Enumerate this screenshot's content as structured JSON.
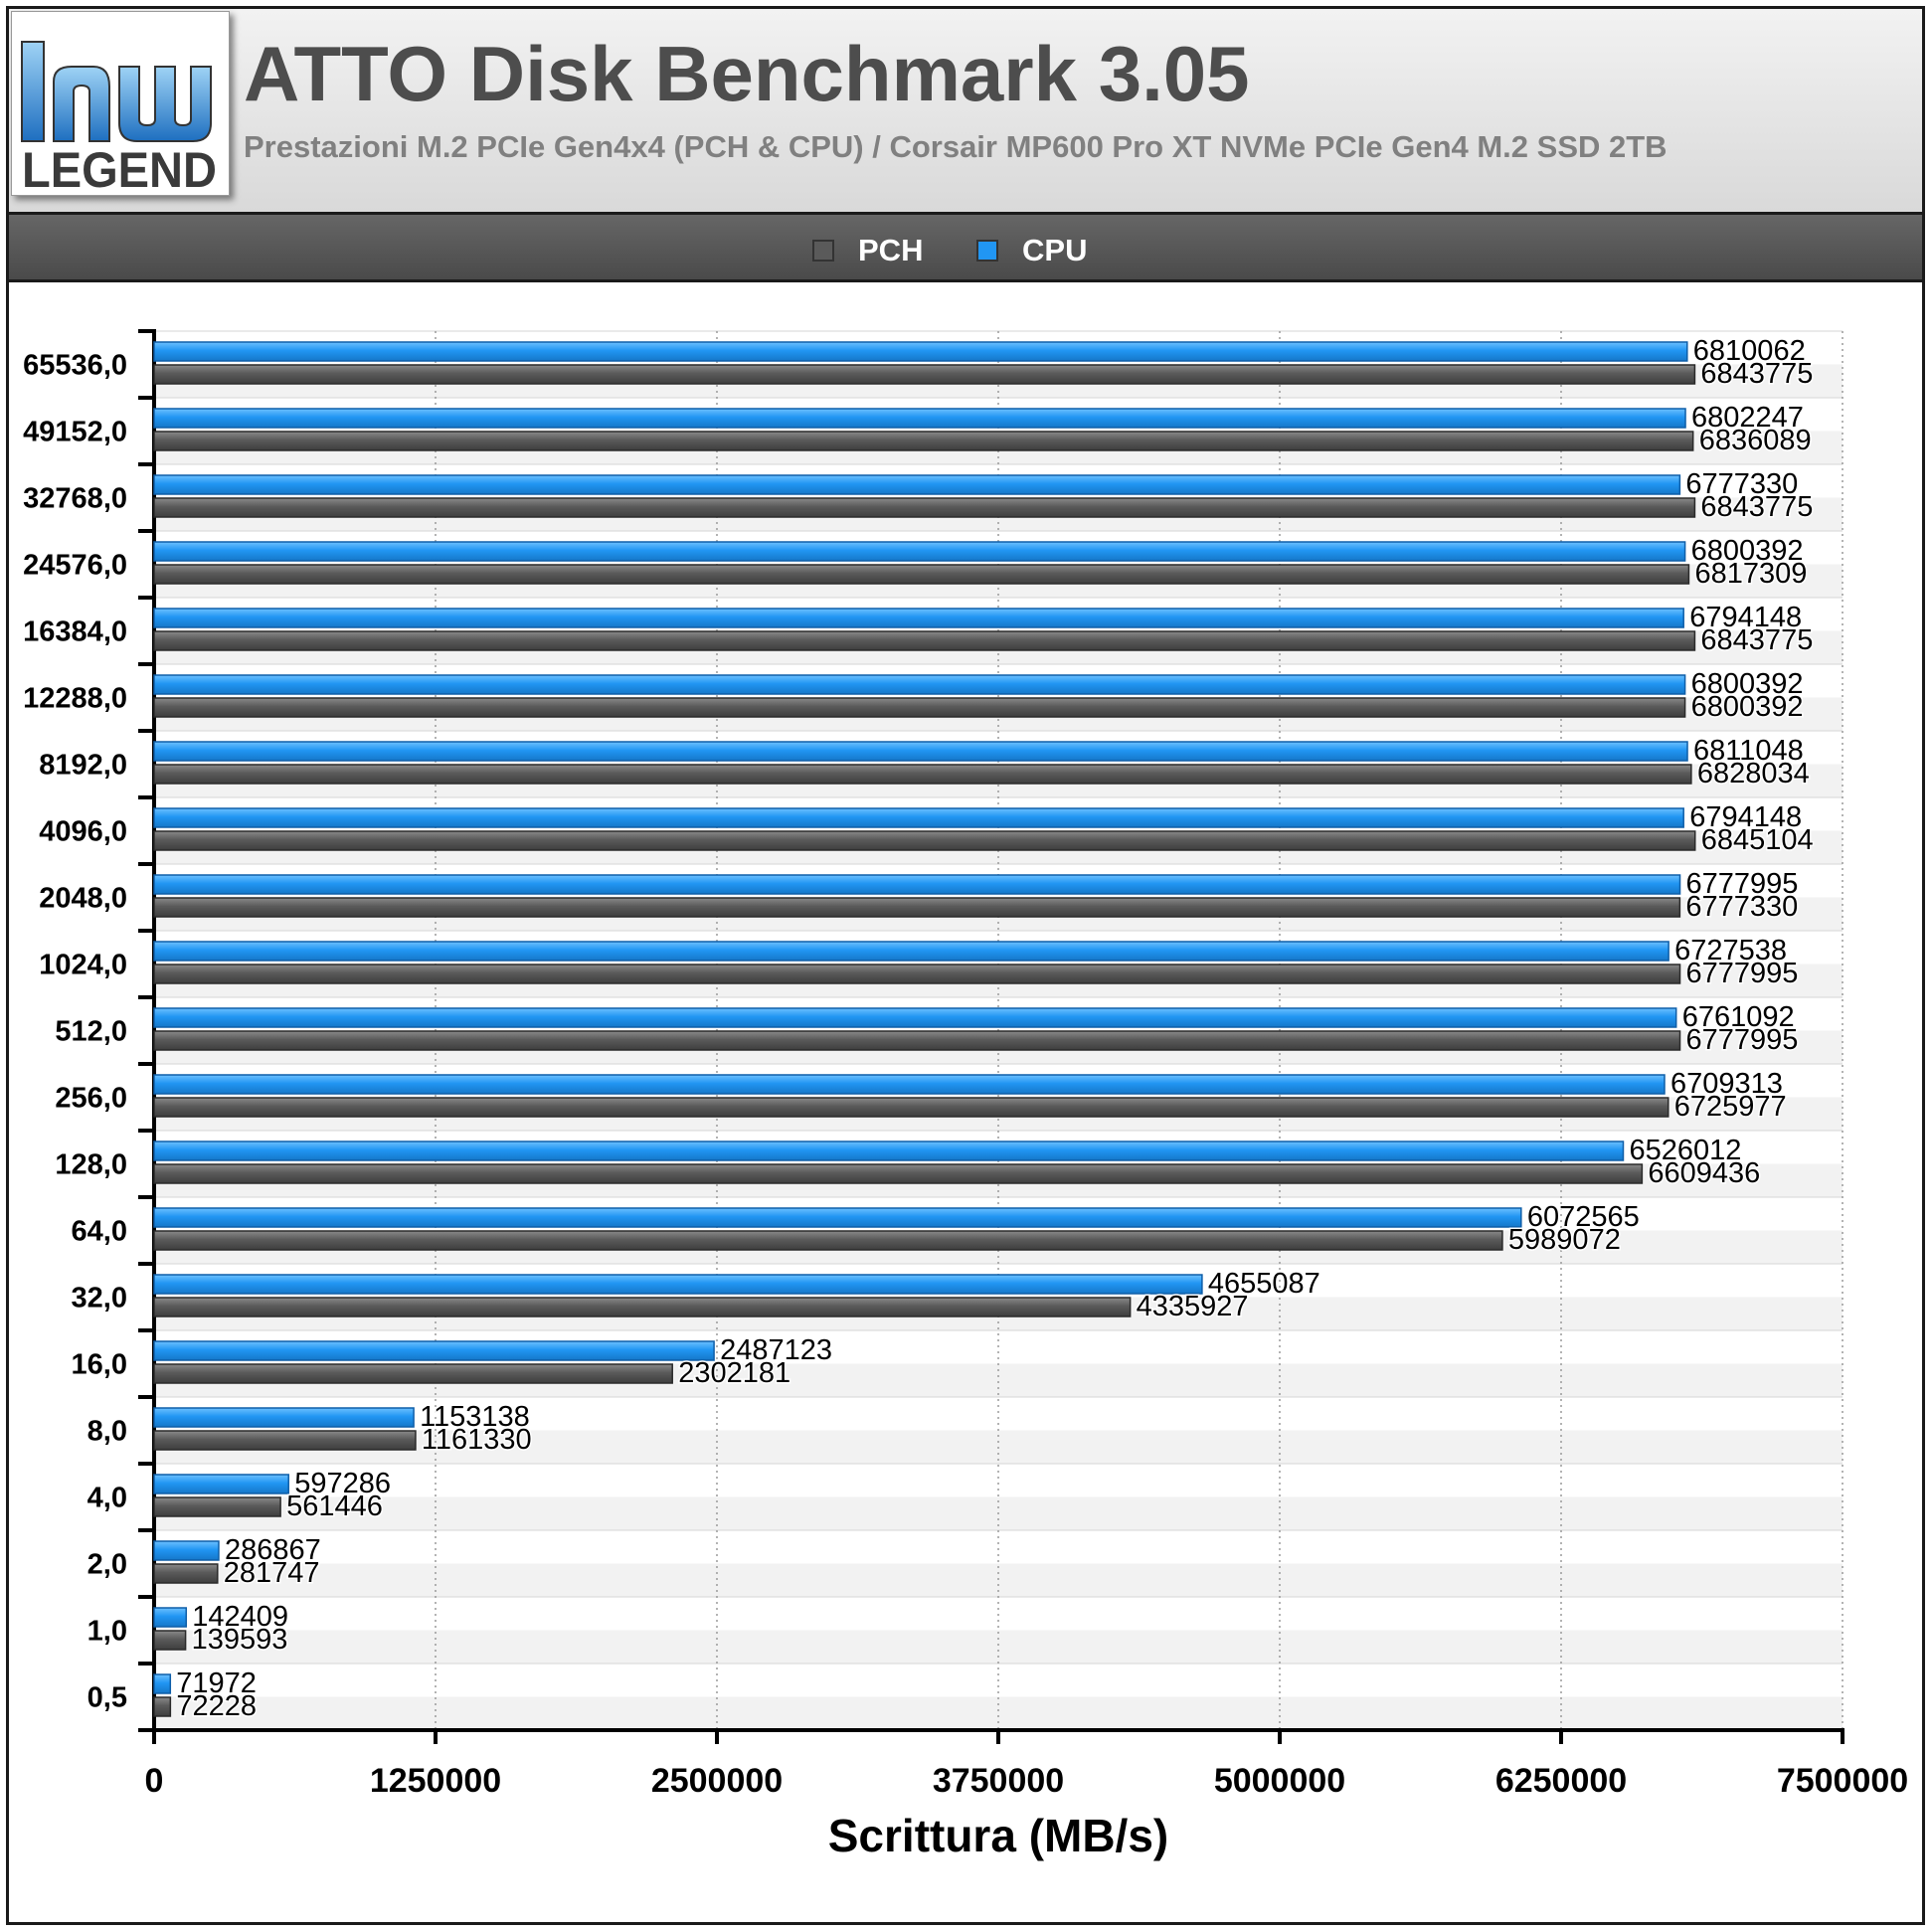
{
  "header": {
    "title": "ATTO Disk Benchmark 3.05",
    "subtitle": "Prestazioni M.2 PCIe Gen4x4 (PCH & CPU) / Corsair MP600 Pro XT NVMe PCIe Gen4 M.2 SSD 2TB",
    "logo_text": "LEGEND"
  },
  "legend": [
    {
      "label": "PCH",
      "color": "#5a5a5a"
    },
    {
      "label": "CPU",
      "color": "#2196f3"
    }
  ],
  "chart_data": {
    "type": "bar",
    "orientation": "horizontal",
    "title": "ATTO Disk Benchmark 3.05",
    "xlabel": "Scrittura (MB/s)",
    "ylabel": "",
    "xlim": [
      0,
      7500000
    ],
    "x_ticks": [
      "0",
      "1250000",
      "2500000",
      "3750000",
      "5000000",
      "6250000",
      "7500000"
    ],
    "categories": [
      "65536,0",
      "49152,0",
      "32768,0",
      "24576,0",
      "16384,0",
      "12288,0",
      "8192,0",
      "4096,0",
      "2048,0",
      "1024,0",
      "512,0",
      "256,0",
      "128,0",
      "64,0",
      "32,0",
      "16,0",
      "8,0",
      "4,0",
      "2,0",
      "1,0",
      "0,5"
    ],
    "series": [
      {
        "name": "CPU",
        "color": "#2196f3",
        "values": [
          6810062,
          6802247,
          6777330,
          6800392,
          6794148,
          6800392,
          6811048,
          6794148,
          6777995,
          6727538,
          6761092,
          6709313,
          6526012,
          6072565,
          4655087,
          2487123,
          1153138,
          597286,
          286867,
          142409,
          71972
        ]
      },
      {
        "name": "PCH",
        "color": "#5a5a5a",
        "values": [
          6843775,
          6836089,
          6843775,
          6817309,
          6843775,
          6800392,
          6828034,
          6845104,
          6777330,
          6777995,
          6777995,
          6725977,
          6609436,
          5989072,
          4335927,
          2302181,
          1161330,
          561446,
          281747,
          139593,
          72228
        ]
      }
    ],
    "grid": true,
    "legend_position": "top-center"
  }
}
